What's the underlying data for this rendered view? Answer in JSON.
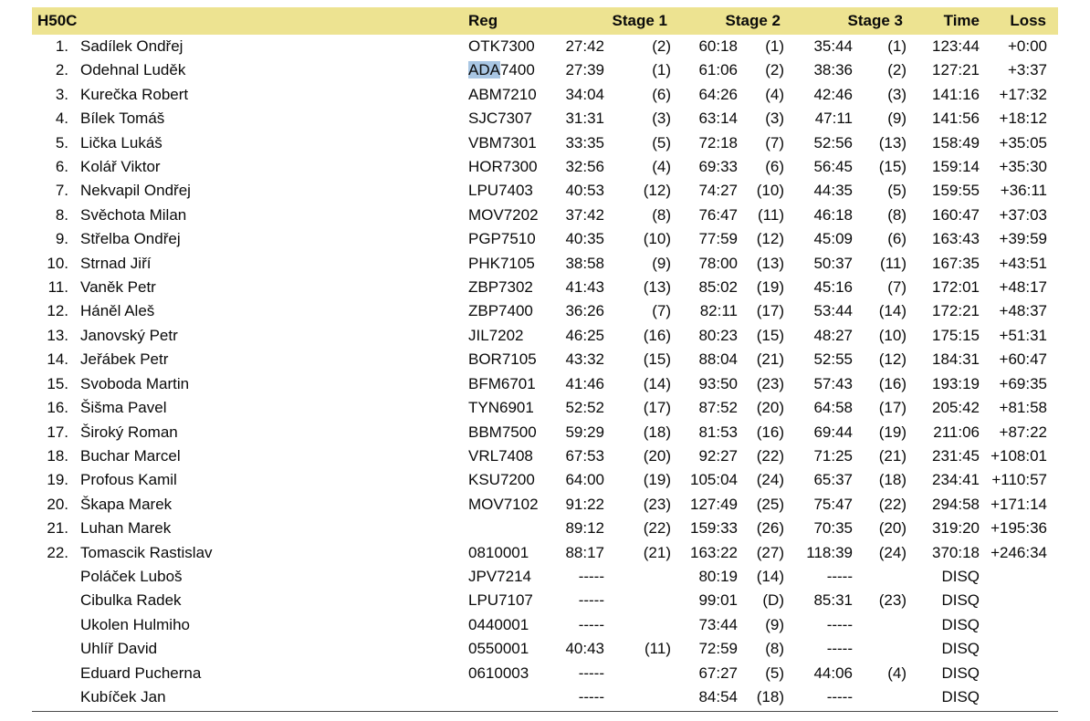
{
  "colors": {
    "header_bg": "#ede391",
    "find_highlight": "#a9c6e3",
    "text": "#0a0a0a"
  },
  "header": {
    "class_label": "H50C",
    "reg": "Reg",
    "stage1": "Stage 1",
    "stage2": "Stage 2",
    "stage3": "Stage 3",
    "time": "Time",
    "loss": "Loss"
  },
  "rows": [
    {
      "rank": "1.",
      "name": "Sadílek Ondřej",
      "reg_hl": "",
      "reg_rest": "OTK7300",
      "s1": "27:42",
      "s1r": "(2)",
      "s2": "60:18",
      "s2r": "(1)",
      "s3": "35:44",
      "s3r": "(1)",
      "time": "123:44",
      "loss": "+0:00"
    },
    {
      "rank": "2.",
      "name": "Odehnal Luděk",
      "reg_hl": "ADA",
      "reg_rest": "7400",
      "s1": "27:39",
      "s1r": "(1)",
      "s2": "61:06",
      "s2r": "(2)",
      "s3": "38:36",
      "s3r": "(2)",
      "time": "127:21",
      "loss": "+3:37"
    },
    {
      "rank": "3.",
      "name": "Kurečka Robert",
      "reg_hl": "",
      "reg_rest": "ABM7210",
      "s1": "34:04",
      "s1r": "(6)",
      "s2": "64:26",
      "s2r": "(4)",
      "s3": "42:46",
      "s3r": "(3)",
      "time": "141:16",
      "loss": "+17:32"
    },
    {
      "rank": "4.",
      "name": "Bílek Tomáš",
      "reg_hl": "",
      "reg_rest": "SJC7307",
      "s1": "31:31",
      "s1r": "(3)",
      "s2": "63:14",
      "s2r": "(3)",
      "s3": "47:11",
      "s3r": "(9)",
      "time": "141:56",
      "loss": "+18:12"
    },
    {
      "rank": "5.",
      "name": "Lička Lukáš",
      "reg_hl": "",
      "reg_rest": "VBM7301",
      "s1": "33:35",
      "s1r": "(5)",
      "s2": "72:18",
      "s2r": "(7)",
      "s3": "52:56",
      "s3r": "(13)",
      "time": "158:49",
      "loss": "+35:05"
    },
    {
      "rank": "6.",
      "name": "Kolář Viktor",
      "reg_hl": "",
      "reg_rest": "HOR7300",
      "s1": "32:56",
      "s1r": "(4)",
      "s2": "69:33",
      "s2r": "(6)",
      "s3": "56:45",
      "s3r": "(15)",
      "time": "159:14",
      "loss": "+35:30"
    },
    {
      "rank": "7.",
      "name": "Nekvapil Ondřej",
      "reg_hl": "",
      "reg_rest": "LPU7403",
      "s1": "40:53",
      "s1r": "(12)",
      "s2": "74:27",
      "s2r": "(10)",
      "s3": "44:35",
      "s3r": "(5)",
      "time": "159:55",
      "loss": "+36:11"
    },
    {
      "rank": "8.",
      "name": "Svěchota Milan",
      "reg_hl": "",
      "reg_rest": "MOV7202",
      "s1": "37:42",
      "s1r": "(8)",
      "s2": "76:47",
      "s2r": "(11)",
      "s3": "46:18",
      "s3r": "(8)",
      "time": "160:47",
      "loss": "+37:03"
    },
    {
      "rank": "9.",
      "name": "Střelba Ondřej",
      "reg_hl": "",
      "reg_rest": "PGP7510",
      "s1": "40:35",
      "s1r": "(10)",
      "s2": "77:59",
      "s2r": "(12)",
      "s3": "45:09",
      "s3r": "(6)",
      "time": "163:43",
      "loss": "+39:59"
    },
    {
      "rank": "10.",
      "name": "Strnad Jiří",
      "reg_hl": "",
      "reg_rest": "PHK7105",
      "s1": "38:58",
      "s1r": "(9)",
      "s2": "78:00",
      "s2r": "(13)",
      "s3": "50:37",
      "s3r": "(11)",
      "time": "167:35",
      "loss": "+43:51"
    },
    {
      "rank": "11.",
      "name": "Vaněk Petr",
      "reg_hl": "",
      "reg_rest": "ZBP7302",
      "s1": "41:43",
      "s1r": "(13)",
      "s2": "85:02",
      "s2r": "(19)",
      "s3": "45:16",
      "s3r": "(7)",
      "time": "172:01",
      "loss": "+48:17"
    },
    {
      "rank": "12.",
      "name": "Háněl Aleš",
      "reg_hl": "",
      "reg_rest": "ZBP7400",
      "s1": "36:26",
      "s1r": "(7)",
      "s2": "82:11",
      "s2r": "(17)",
      "s3": "53:44",
      "s3r": "(14)",
      "time": "172:21",
      "loss": "+48:37"
    },
    {
      "rank": "13.",
      "name": "Janovský Petr",
      "reg_hl": "",
      "reg_rest": "JIL7202",
      "s1": "46:25",
      "s1r": "(16)",
      "s2": "80:23",
      "s2r": "(15)",
      "s3": "48:27",
      "s3r": "(10)",
      "time": "175:15",
      "loss": "+51:31"
    },
    {
      "rank": "14.",
      "name": "Jeřábek Petr",
      "reg_hl": "",
      "reg_rest": "BOR7105",
      "s1": "43:32",
      "s1r": "(15)",
      "s2": "88:04",
      "s2r": "(21)",
      "s3": "52:55",
      "s3r": "(12)",
      "time": "184:31",
      "loss": "+60:47"
    },
    {
      "rank": "15.",
      "name": "Svoboda Martin",
      "reg_hl": "",
      "reg_rest": "BFM6701",
      "s1": "41:46",
      "s1r": "(14)",
      "s2": "93:50",
      "s2r": "(23)",
      "s3": "57:43",
      "s3r": "(16)",
      "time": "193:19",
      "loss": "+69:35"
    },
    {
      "rank": "16.",
      "name": "Šišma Pavel",
      "reg_hl": "",
      "reg_rest": "TYN6901",
      "s1": "52:52",
      "s1r": "(17)",
      "s2": "87:52",
      "s2r": "(20)",
      "s3": "64:58",
      "s3r": "(17)",
      "time": "205:42",
      "loss": "+81:58"
    },
    {
      "rank": "17.",
      "name": "Široký Roman",
      "reg_hl": "",
      "reg_rest": "BBM7500",
      "s1": "59:29",
      "s1r": "(18)",
      "s2": "81:53",
      "s2r": "(16)",
      "s3": "69:44",
      "s3r": "(19)",
      "time": "211:06",
      "loss": "+87:22"
    },
    {
      "rank": "18.",
      "name": "Buchar Marcel",
      "reg_hl": "",
      "reg_rest": "VRL7408",
      "s1": "67:53",
      "s1r": "(20)",
      "s2": "92:27",
      "s2r": "(22)",
      "s3": "71:25",
      "s3r": "(21)",
      "time": "231:45",
      "loss": "+108:01"
    },
    {
      "rank": "19.",
      "name": "Profous Kamil",
      "reg_hl": "",
      "reg_rest": "KSU7200",
      "s1": "64:00",
      "s1r": "(19)",
      "s2": "105:04",
      "s2r": "(24)",
      "s3": "65:37",
      "s3r": "(18)",
      "time": "234:41",
      "loss": "+110:57"
    },
    {
      "rank": "20.",
      "name": "Škapa Marek",
      "reg_hl": "",
      "reg_rest": "MOV7102",
      "s1": "91:22",
      "s1r": "(23)",
      "s2": "127:49",
      "s2r": "(25)",
      "s3": "75:47",
      "s3r": "(22)",
      "time": "294:58",
      "loss": "+171:14"
    },
    {
      "rank": "21.",
      "name": "Luhan Marek",
      "reg_hl": "",
      "reg_rest": "",
      "s1": "89:12",
      "s1r": "(22)",
      "s2": "159:33",
      "s2r": "(26)",
      "s3": "70:35",
      "s3r": "(20)",
      "time": "319:20",
      "loss": "+195:36"
    },
    {
      "rank": "22.",
      "name": "Tomascik Rastislav",
      "reg_hl": "",
      "reg_rest": "0810001",
      "s1": "88:17",
      "s1r": "(21)",
      "s2": "163:22",
      "s2r": "(27)",
      "s3": "118:39",
      "s3r": "(24)",
      "time": "370:18",
      "loss": "+246:34"
    },
    {
      "rank": "",
      "name": "Poláček Luboš",
      "reg_hl": "",
      "reg_rest": "JPV7214",
      "s1": "-----",
      "s1r": "",
      "s2": "80:19",
      "s2r": "(14)",
      "s3": "-----",
      "s3r": "",
      "time": "DISQ",
      "loss": ""
    },
    {
      "rank": "",
      "name": "Cibulka Radek",
      "reg_hl": "",
      "reg_rest": "LPU7107",
      "s1": "-----",
      "s1r": "",
      "s2": "99:01",
      "s2r": "(D)",
      "s3": "85:31",
      "s3r": "(23)",
      "time": "DISQ",
      "loss": ""
    },
    {
      "rank": "",
      "name": "Ukolen Hulmiho",
      "reg_hl": "",
      "reg_rest": "0440001",
      "s1": "-----",
      "s1r": "",
      "s2": "73:44",
      "s2r": "(9)",
      "s3": "-----",
      "s3r": "",
      "time": "DISQ",
      "loss": ""
    },
    {
      "rank": "",
      "name": "Uhlíř David",
      "reg_hl": "",
      "reg_rest": "0550001",
      "s1": "40:43",
      "s1r": "(11)",
      "s2": "72:59",
      "s2r": "(8)",
      "s3": "-----",
      "s3r": "",
      "time": "DISQ",
      "loss": ""
    },
    {
      "rank": "",
      "name": "Eduard Pucherna",
      "reg_hl": "",
      "reg_rest": "0610003",
      "s1": "-----",
      "s1r": "",
      "s2": "67:27",
      "s2r": "(5)",
      "s3": "44:06",
      "s3r": "(4)",
      "time": "DISQ",
      "loss": ""
    },
    {
      "rank": "",
      "name": "Kubíček Jan",
      "reg_hl": "",
      "reg_rest": "",
      "s1": "-----",
      "s1r": "",
      "s2": "84:54",
      "s2r": "(18)",
      "s3": "-----",
      "s3r": "",
      "time": "DISQ",
      "loss": ""
    }
  ]
}
